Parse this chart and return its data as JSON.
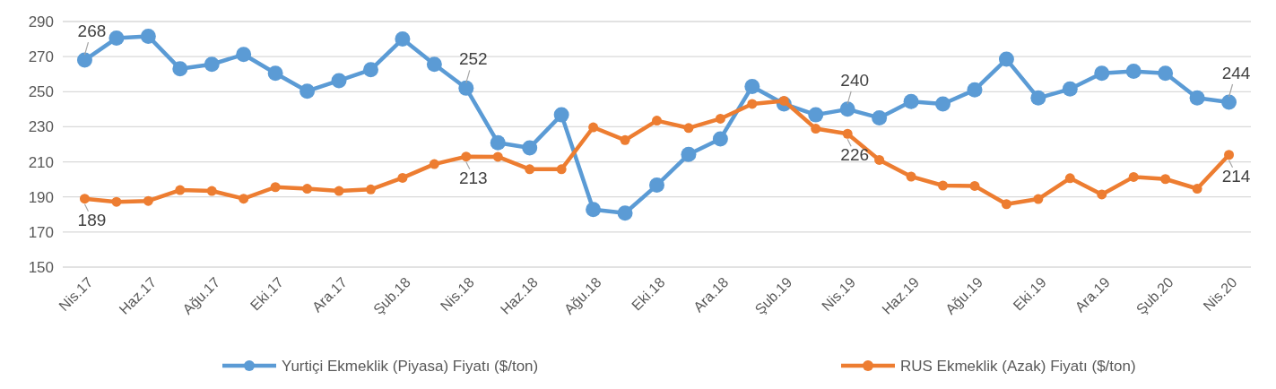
{
  "chart_data": {
    "type": "line",
    "categories": [
      "Nis.17",
      null,
      "Haz.17",
      null,
      "Ağu.17",
      null,
      "Eki.17",
      null,
      "Ara.17",
      null,
      "Şub.18",
      null,
      "Nis.18",
      null,
      "Haz.18",
      null,
      "Ağu.18",
      null,
      "Eki.18",
      null,
      "Ara.18",
      null,
      "Şub.19",
      null,
      "Nis.19",
      null,
      "Haz.19",
      null,
      "Ağu.19",
      null,
      "Eki.19",
      null,
      "Ara.19",
      null,
      "Şub.20",
      null,
      "Nis.20"
    ],
    "series": [
      {
        "name": "Yurtiçi Ekmeklik (Piyasa) Fiyatı ($/ton)",
        "color": "#5b9bd5",
        "values": [
          268,
          280.5,
          281.6,
          263,
          265.6,
          271.2,
          260.5,
          250.3,
          256.3,
          262.5,
          280,
          265.6,
          252,
          220.9,
          218,
          236.8,
          182.8,
          180.8,
          196.7,
          214.2,
          223.1,
          253,
          243,
          236.8,
          240,
          235.1,
          244.4,
          243,
          251,
          268.5,
          246.4,
          251.5,
          260.5,
          261.6,
          260.5,
          246.4,
          244
        ],
        "value_labels": [
          "268",
          null,
          null,
          null,
          null,
          null,
          null,
          null,
          null,
          null,
          null,
          null,
          "252",
          null,
          null,
          null,
          null,
          null,
          null,
          null,
          null,
          null,
          null,
          null,
          "240",
          null,
          null,
          null,
          null,
          null,
          null,
          null,
          null,
          null,
          null,
          null,
          "244"
        ]
      },
      {
        "name": "RUS Ekmeklik (Azak) Fiyatı ($/ton)",
        "color": "#ed7d31",
        "values": [
          189,
          187.2,
          187.7,
          193.9,
          193.4,
          189,
          195.6,
          194.7,
          193.4,
          194.3,
          200.9,
          208.7,
          213,
          212.9,
          205.8,
          205.8,
          229.7,
          222.4,
          233.5,
          229.3,
          234.6,
          243,
          244.8,
          228.9,
          226,
          211.1,
          201.6,
          196.5,
          196.3,
          185.9,
          188.8,
          200.7,
          191.4,
          201.4,
          200.2,
          194.7,
          214
        ],
        "value_labels": [
          "189",
          null,
          null,
          null,
          null,
          null,
          null,
          null,
          null,
          null,
          null,
          null,
          "213",
          null,
          null,
          null,
          null,
          null,
          null,
          null,
          null,
          null,
          null,
          null,
          "226",
          null,
          null,
          null,
          null,
          null,
          null,
          null,
          null,
          null,
          null,
          null,
          "214"
        ]
      }
    ],
    "ylim": [
      150,
      290
    ],
    "yticks": [
      150,
      170,
      190,
      210,
      230,
      250,
      270,
      290
    ],
    "grid": "y",
    "legend": "bottom",
    "marker": "circle",
    "line_style": "solid"
  }
}
